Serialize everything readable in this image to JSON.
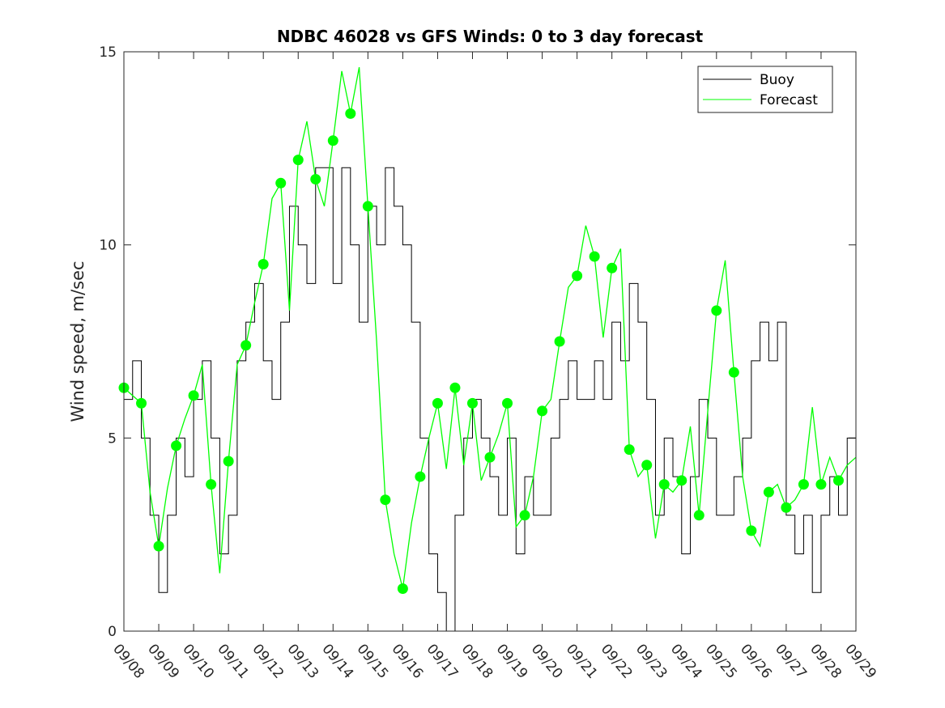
{
  "chart_data": {
    "type": "line",
    "title": "NDBC 46028 vs GFS Winds: 0 to 3 day forecast",
    "xlabel": "",
    "ylabel": "Wind speed, m/sec",
    "xlim": [
      0,
      21
    ],
    "ylim": [
      0,
      15
    ],
    "yticks": [
      0,
      5,
      10,
      15
    ],
    "xtick_labels": [
      "09/08",
      "09/09",
      "09/10",
      "09/11",
      "09/12",
      "09/13",
      "09/14",
      "09/15",
      "09/16",
      "09/17",
      "09/18",
      "09/19",
      "09/20",
      "09/21",
      "09/22",
      "09/23",
      "09/24",
      "09/25",
      "09/26",
      "09/27",
      "09/28",
      "09/29"
    ],
    "legend": {
      "position": "top-right",
      "entries": [
        "Buoy",
        "Forecast"
      ]
    },
    "colors": {
      "buoy": "#000000",
      "forecast": "#00ff00",
      "axis": "#262626"
    },
    "forecast_points": {
      "x": [
        0.0,
        0.5,
        1.0,
        1.5,
        2.0,
        2.5,
        3.0,
        3.5,
        4.0,
        4.5,
        5.0,
        5.5,
        6.0,
        6.5,
        7.0,
        7.5,
        8.0,
        8.5,
        9.0,
        9.5,
        10.0,
        10.5,
        11.0,
        11.5,
        12.0,
        12.5,
        13.0,
        13.5,
        14.0,
        14.5,
        15.0,
        15.5,
        16.0,
        16.5,
        17.0,
        17.5,
        18.0,
        18.5,
        19.0,
        19.5,
        20.0,
        20.5
      ],
      "y": [
        6.3,
        5.9,
        2.2,
        4.8,
        6.1,
        3.8,
        4.4,
        7.4,
        9.5,
        11.6,
        12.2,
        11.7,
        12.7,
        13.4,
        11.0,
        3.4,
        1.1,
        4.0,
        5.9,
        6.3,
        5.9,
        4.5,
        5.9,
        3.0,
        5.7,
        7.5,
        9.2,
        9.7,
        9.4,
        4.7,
        4.3,
        3.8,
        3.9,
        3.0,
        8.3,
        6.7,
        2.6,
        3.6,
        3.2,
        3.8,
        3.8,
        3.9
      ]
    },
    "series": [
      {
        "name": "Buoy",
        "x": [
          0.0,
          0.25,
          0.5,
          0.75,
          1.0,
          1.25,
          1.5,
          1.75,
          2.0,
          2.25,
          2.5,
          2.75,
          3.0,
          3.25,
          3.5,
          3.75,
          4.0,
          4.25,
          4.5,
          4.75,
          5.0,
          5.25,
          5.5,
          5.75,
          6.0,
          6.25,
          6.5,
          6.75,
          7.0,
          7.25,
          7.5,
          7.75,
          8.0,
          8.25,
          8.5,
          8.75,
          9.0,
          9.25,
          9.5,
          9.75,
          10.0,
          10.25,
          10.5,
          10.75,
          11.0,
          11.25,
          11.5,
          11.75,
          12.0,
          12.25,
          12.5,
          12.75,
          13.0,
          13.25,
          13.5,
          13.75,
          14.0,
          14.25,
          14.5,
          14.75,
          15.0,
          15.25,
          15.5,
          15.75,
          16.0,
          16.25,
          16.5,
          16.75,
          17.0,
          17.25,
          17.5,
          17.75,
          18.0,
          18.25,
          18.5,
          18.75,
          19.0,
          19.25,
          19.5,
          19.75,
          20.0,
          20.25,
          20.5,
          20.75,
          21.0
        ],
        "y": [
          6,
          7,
          5,
          3,
          1,
          3,
          5,
          4,
          6,
          7,
          5,
          2,
          3,
          7,
          8,
          9,
          7,
          6,
          8,
          11,
          10,
          9,
          12,
          12,
          9,
          12,
          10,
          8,
          11,
          10,
          12,
          11,
          10,
          8,
          5,
          2,
          1,
          0,
          3,
          5,
          6,
          5,
          4,
          3,
          5,
          2,
          4,
          3,
          3,
          5,
          6,
          7,
          6,
          6,
          7,
          6,
          8,
          7,
          9,
          8,
          6,
          3,
          5,
          4,
          2,
          4,
          6,
          5,
          3,
          3,
          4,
          5,
          7,
          8,
          7,
          8,
          3,
          2,
          3,
          1,
          3,
          4,
          3,
          5,
          4
        ]
      },
      {
        "name": "Forecast",
        "x": [
          0.0,
          0.25,
          0.5,
          0.75,
          1.0,
          1.25,
          1.5,
          1.75,
          2.0,
          2.25,
          2.5,
          2.75,
          3.0,
          3.25,
          3.5,
          3.75,
          4.0,
          4.25,
          4.5,
          4.75,
          5.0,
          5.25,
          5.5,
          5.75,
          6.0,
          6.25,
          6.5,
          6.75,
          7.0,
          7.25,
          7.5,
          7.75,
          8.0,
          8.25,
          8.5,
          8.75,
          9.0,
          9.25,
          9.5,
          9.75,
          10.0,
          10.25,
          10.5,
          10.75,
          11.0,
          11.25,
          11.5,
          11.75,
          12.0,
          12.25,
          12.5,
          12.75,
          13.0,
          13.25,
          13.5,
          13.75,
          14.0,
          14.25,
          14.5,
          14.75,
          15.0,
          15.25,
          15.5,
          15.75,
          16.0,
          16.25,
          16.5,
          16.75,
          17.0,
          17.25,
          17.5,
          17.75,
          18.0,
          18.25,
          18.5,
          18.75,
          19.0,
          19.25,
          19.5,
          19.75,
          20.0,
          20.25,
          20.5,
          20.75,
          21.0
        ],
        "y": [
          6.3,
          6.1,
          5.9,
          3.6,
          2.2,
          3.7,
          4.8,
          5.5,
          6.1,
          6.9,
          3.8,
          1.5,
          4.4,
          6.9,
          7.4,
          8.5,
          9.5,
          11.2,
          11.6,
          8.3,
          12.2,
          13.2,
          11.7,
          11.0,
          12.7,
          14.5,
          13.4,
          14.6,
          11.0,
          7.5,
          3.4,
          2.0,
          1.1,
          2.8,
          4.0,
          5.0,
          5.9,
          4.2,
          6.3,
          4.3,
          5.9,
          3.9,
          4.5,
          5.1,
          5.9,
          2.7,
          3.0,
          4.0,
          5.7,
          6.0,
          7.5,
          8.9,
          9.2,
          10.5,
          9.7,
          7.6,
          9.4,
          9.9,
          4.7,
          4.0,
          4.3,
          2.4,
          3.8,
          3.6,
          3.9,
          5.3,
          3.0,
          5.7,
          8.3,
          9.6,
          6.7,
          4.0,
          2.6,
          2.2,
          3.6,
          3.8,
          3.2,
          3.4,
          3.8,
          5.8,
          3.8,
          4.5,
          3.9,
          4.3,
          4.5
        ]
      }
    ]
  }
}
